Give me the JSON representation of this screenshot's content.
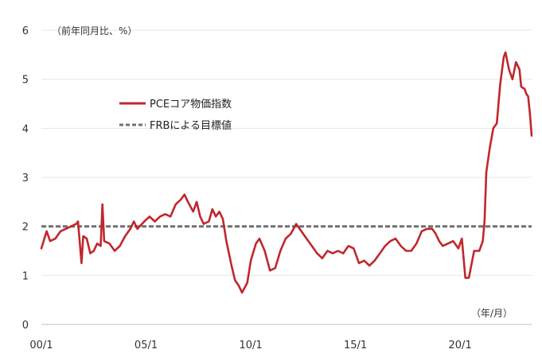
{
  "chart_data": {
    "type": "line",
    "title": "",
    "y_unit_label": "（前年同月比、%）",
    "x_unit_label": "（年/月）",
    "xlabel": "",
    "ylabel": "",
    "ylim": [
      0,
      6
    ],
    "y_ticks": [
      "0",
      "1",
      "2",
      "3",
      "4",
      "5",
      "6"
    ],
    "x_range": [
      "2000-01",
      "2023-06"
    ],
    "x_ticks": [
      {
        "label": "00/1",
        "date": "2000-01"
      },
      {
        "label": "05/1",
        "date": "2005-01"
      },
      {
        "label": "10/1",
        "date": "2010-01"
      },
      {
        "label": "15/1",
        "date": "2015-01"
      },
      {
        "label": "20/1",
        "date": "2020-01"
      }
    ],
    "grid": "horizontal",
    "legend_position": "upper-left",
    "series": [
      {
        "name": "PCEコア物価指数",
        "color": "#c0272d",
        "style": "solid",
        "points": [
          [
            "2000-01",
            1.55
          ],
          [
            "2000-04",
            1.9
          ],
          [
            "2000-06",
            1.7
          ],
          [
            "2000-09",
            1.75
          ],
          [
            "2000-12",
            1.9
          ],
          [
            "2001-03",
            1.95
          ],
          [
            "2001-06",
            2.0
          ],
          [
            "2001-09",
            2.05
          ],
          [
            "2001-10",
            2.1
          ],
          [
            "2001-12",
            1.25
          ],
          [
            "2002-01",
            1.8
          ],
          [
            "2002-03",
            1.75
          ],
          [
            "2002-05",
            1.45
          ],
          [
            "2002-07",
            1.5
          ],
          [
            "2002-09",
            1.65
          ],
          [
            "2002-11",
            1.6
          ],
          [
            "2002-12",
            2.45
          ],
          [
            "2003-01",
            1.7
          ],
          [
            "2003-04",
            1.65
          ],
          [
            "2003-07",
            1.5
          ],
          [
            "2003-10",
            1.6
          ],
          [
            "2004-01",
            1.8
          ],
          [
            "2004-04",
            1.95
          ],
          [
            "2004-06",
            2.1
          ],
          [
            "2004-08",
            1.95
          ],
          [
            "2004-12",
            2.1
          ],
          [
            "2005-03",
            2.2
          ],
          [
            "2005-06",
            2.1
          ],
          [
            "2005-09",
            2.2
          ],
          [
            "2005-12",
            2.25
          ],
          [
            "2006-03",
            2.2
          ],
          [
            "2006-06",
            2.45
          ],
          [
            "2006-09",
            2.55
          ],
          [
            "2006-11",
            2.65
          ],
          [
            "2007-01",
            2.5
          ],
          [
            "2007-04",
            2.3
          ],
          [
            "2007-06",
            2.5
          ],
          [
            "2007-08",
            2.2
          ],
          [
            "2007-10",
            2.05
          ],
          [
            "2008-01",
            2.1
          ],
          [
            "2008-03",
            2.35
          ],
          [
            "2008-05",
            2.2
          ],
          [
            "2008-07",
            2.3
          ],
          [
            "2008-09",
            2.15
          ],
          [
            "2008-11",
            1.7
          ],
          [
            "2009-02",
            1.2
          ],
          [
            "2009-04",
            0.9
          ],
          [
            "2009-06",
            0.8
          ],
          [
            "2009-08",
            0.65
          ],
          [
            "2009-11",
            0.85
          ],
          [
            "2010-01",
            1.3
          ],
          [
            "2010-04",
            1.65
          ],
          [
            "2010-06",
            1.75
          ],
          [
            "2010-09",
            1.5
          ],
          [
            "2010-12",
            1.1
          ],
          [
            "2011-03",
            1.15
          ],
          [
            "2011-06",
            1.5
          ],
          [
            "2011-09",
            1.75
          ],
          [
            "2011-12",
            1.85
          ],
          [
            "2012-03",
            2.05
          ],
          [
            "2012-06",
            1.9
          ],
          [
            "2012-09",
            1.75
          ],
          [
            "2012-12",
            1.6
          ],
          [
            "2013-03",
            1.45
          ],
          [
            "2013-06",
            1.35
          ],
          [
            "2013-09",
            1.5
          ],
          [
            "2013-12",
            1.45
          ],
          [
            "2014-03",
            1.5
          ],
          [
            "2014-06",
            1.45
          ],
          [
            "2014-09",
            1.6
          ],
          [
            "2014-12",
            1.55
          ],
          [
            "2015-03",
            1.25
          ],
          [
            "2015-06",
            1.3
          ],
          [
            "2015-09",
            1.2
          ],
          [
            "2015-12",
            1.3
          ],
          [
            "2016-03",
            1.45
          ],
          [
            "2016-06",
            1.6
          ],
          [
            "2016-09",
            1.7
          ],
          [
            "2016-12",
            1.75
          ],
          [
            "2017-03",
            1.6
          ],
          [
            "2017-06",
            1.5
          ],
          [
            "2017-09",
            1.5
          ],
          [
            "2017-12",
            1.65
          ],
          [
            "2018-03",
            1.9
          ],
          [
            "2018-06",
            1.95
          ],
          [
            "2018-09",
            1.95
          ],
          [
            "2018-11",
            1.85
          ],
          [
            "2019-01",
            1.7
          ],
          [
            "2019-03",
            1.6
          ],
          [
            "2019-06",
            1.65
          ],
          [
            "2019-09",
            1.7
          ],
          [
            "2019-12",
            1.55
          ],
          [
            "2020-02",
            1.75
          ],
          [
            "2020-04",
            0.95
          ],
          [
            "2020-06",
            0.95
          ],
          [
            "2020-09",
            1.5
          ],
          [
            "2020-12",
            1.5
          ],
          [
            "2021-02",
            1.7
          ],
          [
            "2021-03",
            2.1
          ],
          [
            "2021-04",
            3.1
          ],
          [
            "2021-06",
            3.6
          ],
          [
            "2021-08",
            4.0
          ],
          [
            "2021-10",
            4.1
          ],
          [
            "2021-12",
            4.9
          ],
          [
            "2022-02",
            5.45
          ],
          [
            "2022-03",
            5.55
          ],
          [
            "2022-05",
            5.2
          ],
          [
            "2022-07",
            5.0
          ],
          [
            "2022-09",
            5.35
          ],
          [
            "2022-11",
            5.2
          ],
          [
            "2022-12",
            4.85
          ],
          [
            "2023-02",
            4.8
          ],
          [
            "2023-03",
            4.7
          ],
          [
            "2023-04",
            4.65
          ],
          [
            "2023-05",
            4.3
          ],
          [
            "2023-06",
            3.85
          ]
        ]
      },
      {
        "name": "FRBによる目標値",
        "color": "#707070",
        "style": "dashed",
        "points": [
          [
            "2000-01",
            2.0
          ],
          [
            "2023-06",
            2.0
          ]
        ]
      }
    ]
  }
}
